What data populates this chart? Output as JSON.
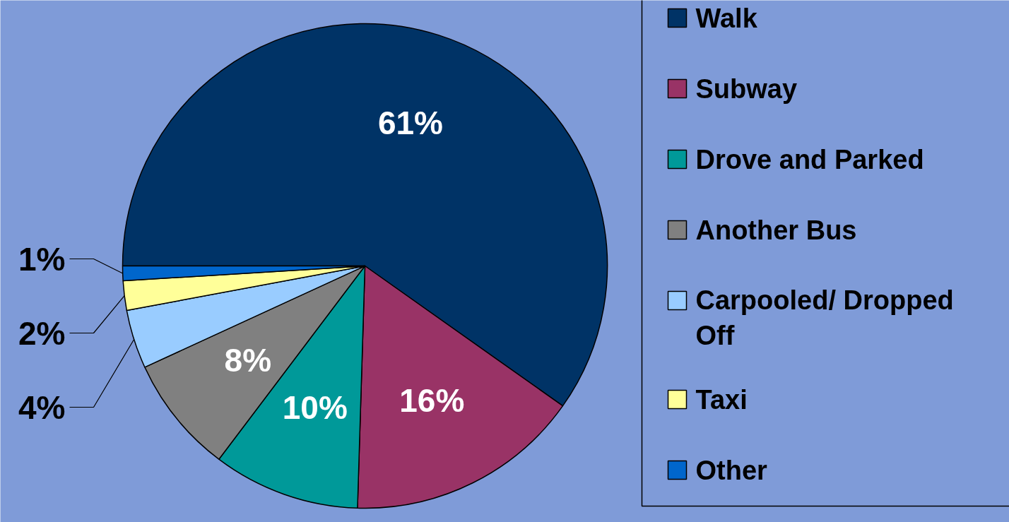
{
  "chart_data": {
    "type": "pie",
    "categories": [
      "Walk",
      "Subway",
      "Drove and Parked",
      "Another Bus",
      "Carpooled/ Dropped Off",
      "Taxi",
      "Other"
    ],
    "values": [
      61,
      16,
      10,
      8,
      4,
      2,
      1
    ],
    "colors": [
      "#003366",
      "#993366",
      "#009999",
      "#808080",
      "#99ccff",
      "#ffff99",
      "#0066cc"
    ],
    "value_labels": [
      "61%",
      "16%",
      "10%",
      "8%",
      "4%",
      "2%",
      "1%"
    ],
    "legend": "right"
  }
}
